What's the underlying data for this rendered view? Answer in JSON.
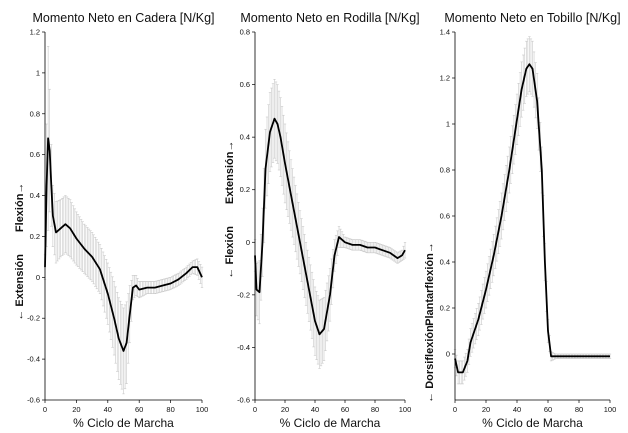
{
  "chart_data": [
    {
      "type": "line",
      "title": "Momento Neto en Cadera [N/Kg]",
      "xlabel": "% Ciclo de Marcha",
      "ylabel_top": "Flexión→",
      "ylabel_bottom": "← Extensión",
      "xlim": [
        0,
        100
      ],
      "ylim": [
        -0.6,
        1.2
      ],
      "xticks": [
        "0",
        "20",
        "40",
        "60",
        "80",
        "100"
      ],
      "yticks": [
        "-0.6",
        "-0.4",
        "-0.2",
        "0",
        "0.2",
        "0.4",
        "0.6",
        "0.8",
        "1",
        "1.2"
      ],
      "x": [
        0,
        1,
        2,
        3,
        4,
        5,
        7,
        10,
        13,
        16,
        20,
        25,
        30,
        35,
        40,
        44,
        47,
        50,
        52,
        54,
        56,
        58,
        60,
        65,
        70,
        75,
        80,
        85,
        90,
        94,
        97,
        100
      ],
      "y": [
        0.05,
        0.45,
        0.68,
        0.62,
        0.45,
        0.3,
        0.22,
        0.24,
        0.26,
        0.24,
        0.19,
        0.14,
        0.1,
        0.04,
        -0.08,
        -0.2,
        -0.3,
        -0.36,
        -0.32,
        -0.18,
        -0.05,
        -0.04,
        -0.06,
        -0.05,
        -0.05,
        -0.04,
        -0.03,
        -0.01,
        0.02,
        0.05,
        0.05,
        0.0
      ],
      "err": [
        0.06,
        0.3,
        0.45,
        0.3,
        0.2,
        0.15,
        0.15,
        0.14,
        0.14,
        0.14,
        0.13,
        0.12,
        0.12,
        0.12,
        0.15,
        0.18,
        0.2,
        0.21,
        0.2,
        0.14,
        0.06,
        0.05,
        0.04,
        0.03,
        0.03,
        0.03,
        0.03,
        0.03,
        0.03,
        0.03,
        0.04,
        0.05
      ]
    },
    {
      "type": "line",
      "title": "Momento Neto en Rodilla [N/Kg]",
      "xlabel": "% Ciclo de Marcha",
      "ylabel_top": "Extensión→",
      "ylabel_bottom": "← Flexión",
      "xlim": [
        0,
        100
      ],
      "ylim": [
        -0.6,
        0.8
      ],
      "xticks": [
        "0",
        "20",
        "40",
        "60",
        "80",
        "100"
      ],
      "yticks": [
        "-0.6",
        "-0.4",
        "-0.2",
        "0",
        "0.2",
        "0.4",
        "0.6",
        "0.8"
      ],
      "x": [
        0,
        1,
        3,
        5,
        7,
        10,
        13,
        15,
        17,
        20,
        25,
        30,
        35,
        40,
        43,
        46,
        50,
        53,
        56,
        58,
        60,
        65,
        70,
        75,
        80,
        85,
        90,
        95,
        98,
        100
      ],
      "y": [
        -0.05,
        -0.18,
        -0.19,
        0.0,
        0.28,
        0.42,
        0.47,
        0.45,
        0.4,
        0.3,
        0.15,
        0.0,
        -0.15,
        -0.3,
        -0.35,
        -0.33,
        -0.2,
        -0.05,
        0.02,
        0.01,
        0.0,
        -0.01,
        -0.01,
        -0.02,
        -0.02,
        -0.03,
        -0.04,
        -0.06,
        -0.05,
        -0.03
      ],
      "err": [
        0.06,
        0.1,
        0.12,
        0.13,
        0.15,
        0.15,
        0.15,
        0.15,
        0.15,
        0.15,
        0.13,
        0.12,
        0.12,
        0.13,
        0.13,
        0.12,
        0.1,
        0.06,
        0.04,
        0.03,
        0.02,
        0.02,
        0.02,
        0.02,
        0.02,
        0.02,
        0.02,
        0.02,
        0.02,
        0.03
      ]
    },
    {
      "type": "line",
      "title": "Momento Neto en Tobillo [N/Kg]",
      "xlabel": "% Ciclo de Marcha",
      "ylabel_top": "Plantarflexión→",
      "ylabel_bottom": "← Dorsiflexión",
      "xlim": [
        0,
        100
      ],
      "ylim": [
        -0.2,
        1.4
      ],
      "xticks": [
        "0",
        "20",
        "40",
        "60",
        "80",
        "100"
      ],
      "yticks": [
        "0",
        "0.2",
        "0.4",
        "0.6",
        "0.8",
        "1",
        "1.2",
        "1.4"
      ],
      "x": [
        0,
        2,
        5,
        8,
        10,
        15,
        20,
        25,
        30,
        35,
        40,
        43,
        46,
        48,
        50,
        53,
        56,
        58,
        60,
        62,
        65,
        70,
        80,
        90,
        100
      ],
      "y": [
        -0.02,
        -0.08,
        -0.08,
        -0.03,
        0.05,
        0.15,
        0.28,
        0.43,
        0.6,
        0.8,
        1.02,
        1.15,
        1.24,
        1.26,
        1.24,
        1.1,
        0.8,
        0.4,
        0.1,
        -0.01,
        -0.01,
        -0.01,
        -0.01,
        -0.01,
        -0.01
      ],
      "err": [
        0.04,
        0.05,
        0.05,
        0.05,
        0.06,
        0.07,
        0.08,
        0.09,
        0.1,
        0.1,
        0.11,
        0.12,
        0.12,
        0.12,
        0.12,
        0.12,
        0.1,
        0.08,
        0.05,
        0.02,
        0.01,
        0.01,
        0.01,
        0.01,
        0.01
      ]
    }
  ]
}
